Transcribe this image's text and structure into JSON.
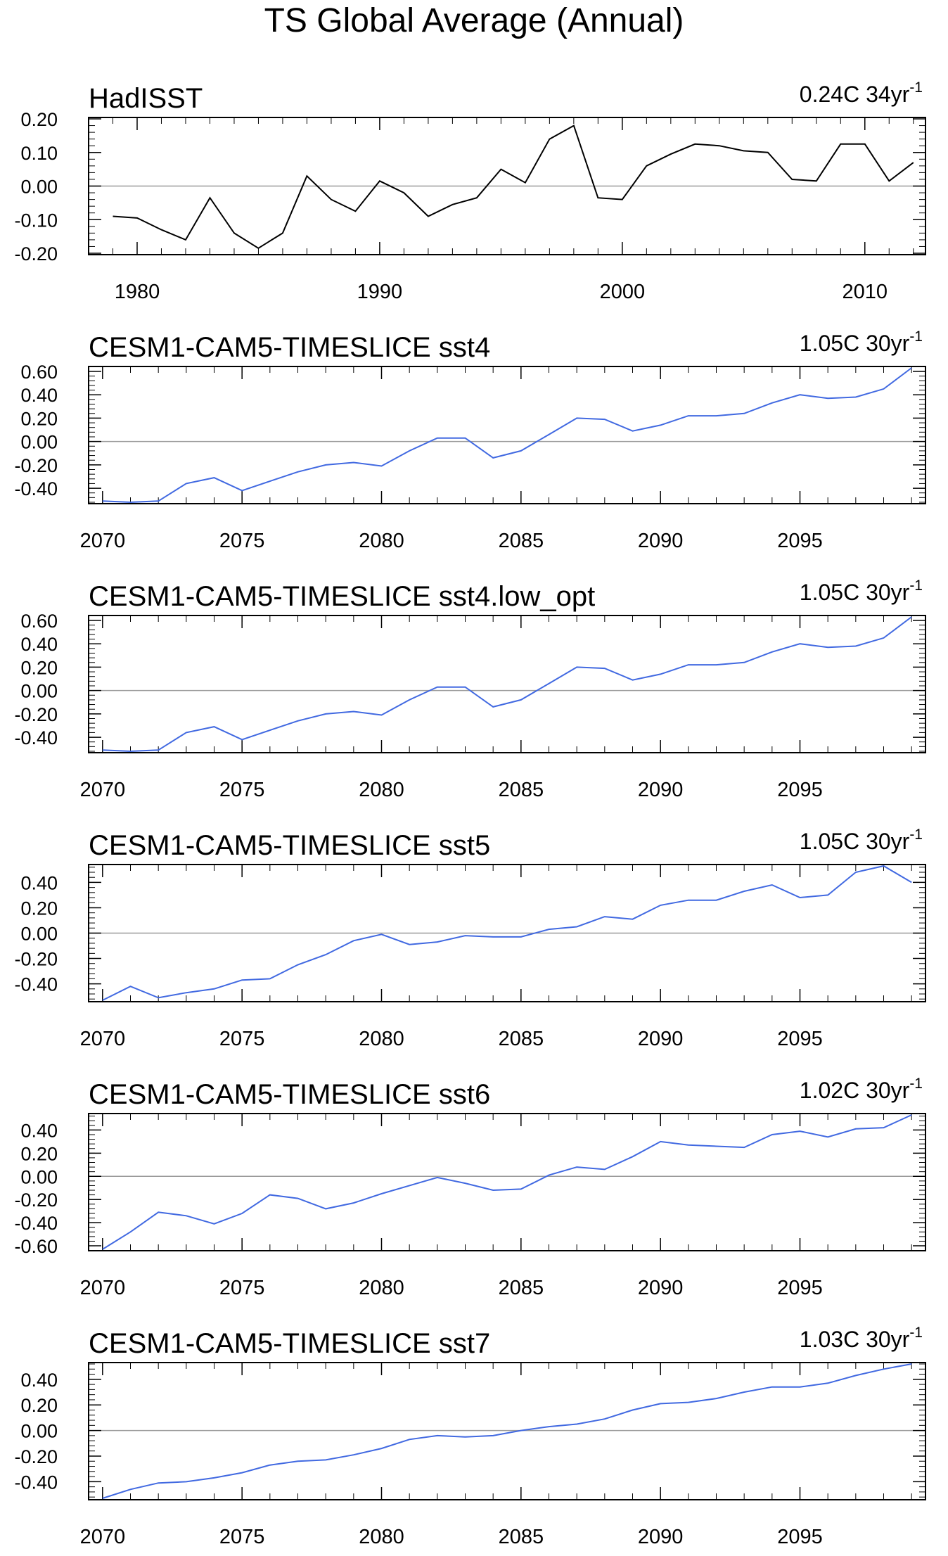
{
  "page": {
    "title": "TS Global Average (Annual)"
  },
  "chart_data": [
    {
      "type": "line",
      "title": "HadISST",
      "trend": "0.24C 34yr",
      "trend_sup": "-1",
      "color": "#000000",
      "x": [
        1979,
        1980,
        1981,
        1982,
        1983,
        1984,
        1985,
        1986,
        1987,
        1988,
        1989,
        1990,
        1991,
        1992,
        1993,
        1994,
        1995,
        1996,
        1997,
        1998,
        1999,
        2000,
        2001,
        2002,
        2003,
        2004,
        2005,
        2006,
        2007,
        2008,
        2009,
        2010,
        2011,
        2012
      ],
      "y": [
        -0.09,
        -0.095,
        -0.13,
        -0.16,
        -0.035,
        -0.14,
        -0.185,
        -0.14,
        0.03,
        -0.04,
        -0.075,
        0.015,
        -0.02,
        -0.09,
        -0.055,
        -0.035,
        0.05,
        0.01,
        0.14,
        0.18,
        -0.035,
        -0.04,
        0.06,
        0.095,
        0.125,
        0.12,
        0.105,
        0.1,
        0.02,
        0.015,
        0.125,
        0.125,
        0.015,
        0.07
      ],
      "xlim": [
        1978,
        2012.5
      ],
      "ylim": [
        -0.2,
        0.2
      ],
      "xticks": [
        1980,
        1990,
        2000,
        2010
      ],
      "yticks": [
        0.2,
        0.1,
        0.0,
        -0.1,
        -0.2
      ],
      "ytick_labels": [
        "0.20",
        "0.10",
        "0.00",
        "-0.10",
        "-0.20"
      ]
    },
    {
      "type": "line",
      "title": "CESM1-CAM5-TIMESLICE sst4",
      "trend": "1.05C 30yr",
      "trend_sup": "-1",
      "color": "#4169e1",
      "x": [
        2070,
        2071,
        2072,
        2073,
        2074,
        2075,
        2076,
        2077,
        2078,
        2079,
        2080,
        2081,
        2082,
        2083,
        2084,
        2085,
        2086,
        2087,
        2088,
        2089,
        2090,
        2091,
        2092,
        2093,
        2094,
        2095,
        2096,
        2097,
        2098,
        2099
      ],
      "y": [
        -0.51,
        -0.52,
        -0.51,
        -0.36,
        -0.31,
        -0.42,
        -0.34,
        -0.26,
        -0.2,
        -0.18,
        -0.21,
        -0.08,
        0.03,
        0.03,
        -0.14,
        -0.08,
        0.06,
        0.2,
        0.19,
        0.09,
        0.14,
        0.22,
        0.22,
        0.24,
        0.33,
        0.4,
        0.37,
        0.38,
        0.45,
        0.63
      ],
      "xlim": [
        2069.5,
        2099.5
      ],
      "ylim": [
        -0.52,
        0.63
      ],
      "xticks": [
        2070,
        2075,
        2080,
        2085,
        2090,
        2095
      ],
      "yticks": [
        0.6,
        0.4,
        0.2,
        0.0,
        -0.2,
        -0.4
      ],
      "ytick_labels": [
        "0.60",
        "0.40",
        "0.20",
        "0.00",
        "-0.20",
        "-0.40"
      ]
    },
    {
      "type": "line",
      "title": "CESM1-CAM5-TIMESLICE sst4.low_opt",
      "trend": "1.05C 30yr",
      "trend_sup": "-1",
      "color": "#4169e1",
      "x": [
        2070,
        2071,
        2072,
        2073,
        2074,
        2075,
        2076,
        2077,
        2078,
        2079,
        2080,
        2081,
        2082,
        2083,
        2084,
        2085,
        2086,
        2087,
        2088,
        2089,
        2090,
        2091,
        2092,
        2093,
        2094,
        2095,
        2096,
        2097,
        2098,
        2099
      ],
      "y": [
        -0.51,
        -0.52,
        -0.51,
        -0.36,
        -0.31,
        -0.42,
        -0.34,
        -0.26,
        -0.2,
        -0.18,
        -0.21,
        -0.08,
        0.03,
        0.03,
        -0.14,
        -0.08,
        0.06,
        0.2,
        0.19,
        0.09,
        0.14,
        0.22,
        0.22,
        0.24,
        0.33,
        0.4,
        0.37,
        0.38,
        0.45,
        0.63
      ],
      "xlim": [
        2069.5,
        2099.5
      ],
      "ylim": [
        -0.52,
        0.63
      ],
      "xticks": [
        2070,
        2075,
        2080,
        2085,
        2090,
        2095
      ],
      "yticks": [
        0.6,
        0.4,
        0.2,
        0.0,
        -0.2,
        -0.4
      ],
      "ytick_labels": [
        "0.60",
        "0.40",
        "0.20",
        "0.00",
        "-0.20",
        "-0.40"
      ]
    },
    {
      "type": "line",
      "title": "CESM1-CAM5-TIMESLICE sst5",
      "trend": "1.05C 30yr",
      "trend_sup": "-1",
      "color": "#4169e1",
      "x": [
        2070,
        2071,
        2072,
        2073,
        2074,
        2075,
        2076,
        2077,
        2078,
        2079,
        2080,
        2081,
        2082,
        2083,
        2084,
        2085,
        2086,
        2087,
        2088,
        2089,
        2090,
        2091,
        2092,
        2093,
        2094,
        2095,
        2096,
        2097,
        2098,
        2099
      ],
      "y": [
        -0.53,
        -0.42,
        -0.51,
        -0.47,
        -0.44,
        -0.37,
        -0.36,
        -0.25,
        -0.17,
        -0.06,
        -0.01,
        -0.09,
        -0.07,
        -0.02,
        -0.03,
        -0.03,
        0.03,
        0.05,
        0.13,
        0.11,
        0.22,
        0.26,
        0.26,
        0.33,
        0.38,
        0.28,
        0.3,
        0.48,
        0.53,
        0.4
      ],
      "xlim": [
        2069.5,
        2099.5
      ],
      "ylim": [
        -0.53,
        0.53
      ],
      "xticks": [
        2070,
        2075,
        2080,
        2085,
        2090,
        2095
      ],
      "yticks": [
        0.4,
        0.2,
        0.0,
        -0.2,
        -0.4
      ],
      "ytick_labels": [
        "0.40",
        "0.20",
        "0.00",
        "-0.20",
        "-0.40"
      ]
    },
    {
      "type": "line",
      "title": "CESM1-CAM5-TIMESLICE sst6",
      "trend": "1.02C 30yr",
      "trend_sup": "-1",
      "color": "#4169e1",
      "x": [
        2070,
        2071,
        2072,
        2073,
        2074,
        2075,
        2076,
        2077,
        2078,
        2079,
        2080,
        2081,
        2082,
        2083,
        2084,
        2085,
        2086,
        2087,
        2088,
        2089,
        2090,
        2091,
        2092,
        2093,
        2094,
        2095,
        2096,
        2097,
        2098,
        2099
      ],
      "y": [
        -0.63,
        -0.48,
        -0.31,
        -0.34,
        -0.41,
        -0.32,
        -0.16,
        -0.19,
        -0.28,
        -0.23,
        -0.15,
        -0.08,
        -0.01,
        -0.06,
        -0.12,
        -0.11,
        0.01,
        0.08,
        0.06,
        0.17,
        0.3,
        0.27,
        0.26,
        0.25,
        0.36,
        0.39,
        0.34,
        0.41,
        0.42,
        0.53
      ],
      "xlim": [
        2069.5,
        2099.5
      ],
      "ylim": [
        -0.63,
        0.53
      ],
      "xticks": [
        2070,
        2075,
        2080,
        2085,
        2090,
        2095
      ],
      "yticks": [
        0.4,
        0.2,
        0.0,
        -0.2,
        -0.4,
        -0.6
      ],
      "ytick_labels": [
        "0.40",
        "0.20",
        "0.00",
        "-0.20",
        "-0.40",
        "-0.60"
      ]
    },
    {
      "type": "line",
      "title": "CESM1-CAM5-TIMESLICE sst7",
      "trend": "1.03C 30yr",
      "trend_sup": "-1",
      "color": "#4169e1",
      "x": [
        2070,
        2071,
        2072,
        2073,
        2074,
        2075,
        2076,
        2077,
        2078,
        2079,
        2080,
        2081,
        2082,
        2083,
        2084,
        2085,
        2086,
        2087,
        2088,
        2089,
        2090,
        2091,
        2092,
        2093,
        2094,
        2095,
        2096,
        2097,
        2098,
        2099
      ],
      "y": [
        -0.53,
        -0.46,
        -0.41,
        -0.4,
        -0.37,
        -0.33,
        -0.27,
        -0.24,
        -0.23,
        -0.19,
        -0.14,
        -0.07,
        -0.04,
        -0.05,
        -0.04,
        0.0,
        0.03,
        0.05,
        0.09,
        0.16,
        0.21,
        0.22,
        0.25,
        0.3,
        0.34,
        0.34,
        0.37,
        0.43,
        0.48,
        0.52
      ],
      "xlim": [
        2069.5,
        2099.5
      ],
      "ylim": [
        -0.53,
        0.52
      ],
      "xticks": [
        2070,
        2075,
        2080,
        2085,
        2090,
        2095
      ],
      "yticks": [
        0.4,
        0.2,
        0.0,
        -0.2,
        -0.4
      ],
      "ytick_labels": [
        "0.40",
        "0.20",
        "0.00",
        "-0.20",
        "-0.40"
      ]
    }
  ]
}
